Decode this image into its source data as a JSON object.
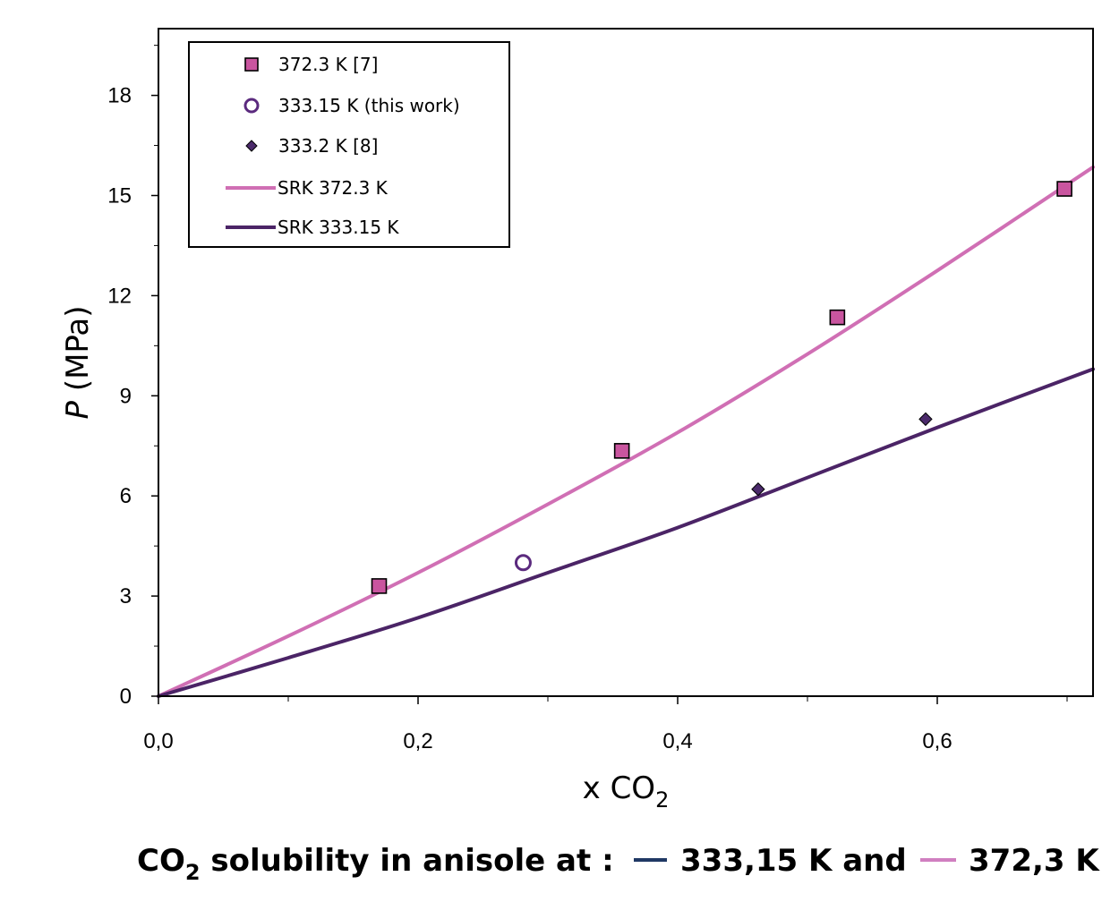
{
  "chart_data": {
    "type": "scatter",
    "xlim": [
      0,
      0.72
    ],
    "ylim": [
      0,
      20
    ],
    "x_ticks": [
      "0,0",
      "0,2",
      "0,4",
      "0,6"
    ],
    "x_tick_values": [
      0,
      0.2,
      0.4,
      0.6
    ],
    "y_ticks": [
      "0",
      "3",
      "6",
      "9",
      "12",
      "15",
      "18"
    ],
    "y_tick_values": [
      0,
      3,
      6,
      9,
      12,
      15,
      18
    ],
    "x_minor_ticks": [
      0.1,
      0.3,
      0.5,
      0.7
    ],
    "y_minor_ticks": [
      1.5,
      4.5,
      7.5,
      10.5,
      13.5,
      16.5,
      19.5
    ],
    "ylabel_italic": "P",
    "ylabel_rest": " (MPa)",
    "xlabel_main": "x CO",
    "xlabel_sub": "2",
    "grid": false,
    "legend_position": "top-left",
    "series": [
      {
        "name": "372.3 K [7]",
        "kind": "points",
        "marker": "square",
        "color": "#C9559F",
        "points": [
          [
            0.17,
            3.3
          ],
          [
            0.357,
            7.35
          ],
          [
            0.523,
            11.35
          ],
          [
            0.698,
            15.2
          ]
        ]
      },
      {
        "name": "333.15 K (this work)",
        "kind": "points",
        "marker": "circle-open",
        "color": "#5B2A7E",
        "points": [
          [
            0.281,
            4.0
          ]
        ]
      },
      {
        "name": "333.2 K [8]",
        "kind": "points",
        "marker": "diamond",
        "color": "#4B2A6B",
        "points": [
          [
            0.462,
            6.2
          ],
          [
            0.591,
            8.3
          ]
        ]
      },
      {
        "name": "SRK 372.3 K",
        "kind": "line",
        "color": "#D06FB4",
        "points": [
          [
            0,
            0
          ],
          [
            0.1,
            1.8
          ],
          [
            0.2,
            3.7
          ],
          [
            0.3,
            5.75
          ],
          [
            0.4,
            7.9
          ],
          [
            0.5,
            10.25
          ],
          [
            0.6,
            12.75
          ],
          [
            0.72,
            15.85
          ]
        ]
      },
      {
        "name": "SRK 333.15 K",
        "kind": "line",
        "color": "#4B2466",
        "points": [
          [
            0,
            0
          ],
          [
            0.1,
            1.15
          ],
          [
            0.2,
            2.35
          ],
          [
            0.3,
            3.7
          ],
          [
            0.4,
            5.05
          ],
          [
            0.5,
            6.55
          ],
          [
            0.6,
            8.05
          ],
          [
            0.72,
            9.8
          ]
        ]
      }
    ]
  },
  "caption": {
    "co": "CO",
    "sub": "2",
    "middle": " solubility in anisole at : ",
    "t1": "333,15 K and",
    "t2": "372,3 K",
    "t1_color": "#1F3864",
    "t2_color": "#D07FC0"
  }
}
